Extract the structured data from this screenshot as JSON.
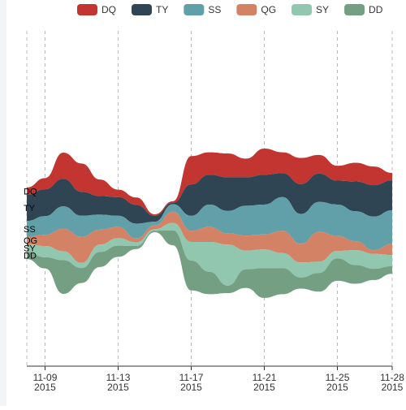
{
  "chart_data": {
    "type": "area",
    "subtype": "themeriver",
    "x_ticks": [
      "11-09\n2015",
      "11-13\n2015",
      "11-17\n2015",
      "11-21\n2015",
      "11-25\n2015",
      "11-28\n2015"
    ],
    "x_tick_days": [
      9,
      13,
      17,
      21,
      25,
      28
    ],
    "x_range": [
      8,
      28
    ],
    "x": [
      8,
      9,
      10,
      11,
      12,
      13,
      14,
      15,
      16,
      17,
      18,
      19,
      20,
      21,
      22,
      23,
      24,
      25,
      26,
      27,
      28
    ],
    "legend_position": "top",
    "series": [
      {
        "name": "DQ",
        "color": "#c23531",
        "values": [
          10,
          15,
          35,
          38,
          22,
          10,
          10,
          2,
          2,
          38,
          30,
          32,
          25,
          35,
          28,
          35,
          25,
          20,
          25,
          25,
          10
        ]
      },
      {
        "name": "TY",
        "color": "#2f4554",
        "values": [
          35,
          36,
          37,
          32,
          25,
          25,
          25,
          8,
          2,
          42,
          40,
          45,
          38,
          40,
          32,
          40,
          38,
          32,
          40,
          42,
          40
        ]
      },
      {
        "name": "SS",
        "color": "#61a0a8",
        "values": [
          21,
          25,
          30,
          28,
          20,
          15,
          20,
          5,
          10,
          20,
          30,
          30,
          40,
          40,
          45,
          40,
          40,
          42,
          40,
          45,
          45
        ]
      },
      {
        "name": "QG",
        "color": "#d48265",
        "values": [
          10,
          15,
          30,
          35,
          20,
          15,
          5,
          5,
          15,
          15,
          20,
          15,
          20,
          20,
          30,
          25,
          40,
          20,
          12,
          5,
          15
        ]
      },
      {
        "name": "SY",
        "color": "#91c7ae",
        "values": [
          10,
          15,
          12,
          7,
          10,
          10,
          5,
          2,
          10,
          25,
          40,
          55,
          25,
          25,
          20,
          20,
          15,
          10,
          20,
          20,
          15
        ]
      },
      {
        "name": "DD",
        "color": "#749f83",
        "values": [
          10,
          15,
          45,
          20,
          20,
          15,
          4,
          2,
          20,
          40,
          30,
          10,
          25,
          40,
          35,
          15,
          25,
          30,
          25,
          15,
          10
        ]
      }
    ]
  }
}
